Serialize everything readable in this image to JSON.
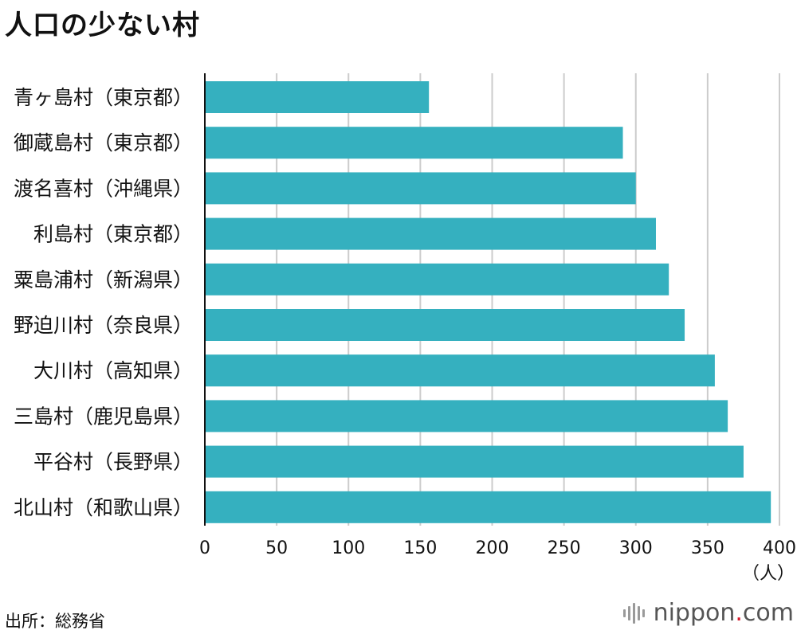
{
  "title": "人口の少ない村",
  "chart_data": {
    "type": "bar",
    "orientation": "horizontal",
    "title": "人口の少ない村",
    "categories": [
      "青ヶ島村（東京都）",
      "御蔵島村（東京都）",
      "渡名喜村（沖縄県）",
      "利島村（東京都）",
      "粟島浦村（新潟県）",
      "野迫川村（奈良県）",
      "大川村（高知県）",
      "三島村（鹿児島県）",
      "平谷村（長野県）",
      "北山村（和歌山県）"
    ],
    "values": [
      156,
      291,
      300,
      314,
      323,
      334,
      355,
      364,
      375,
      394
    ],
    "xlim": [
      0,
      400
    ],
    "xticks": [
      "0",
      "50",
      "100",
      "150",
      "200",
      "250",
      "300",
      "350",
      "400"
    ],
    "xlabel": "（人）",
    "grid": true,
    "bar_color": "#35b0bf",
    "grid_color": "#cccccc"
  },
  "source": "出所：総務省",
  "logo": {
    "name": "nippon",
    "dot": ".",
    "suffix": "com"
  }
}
